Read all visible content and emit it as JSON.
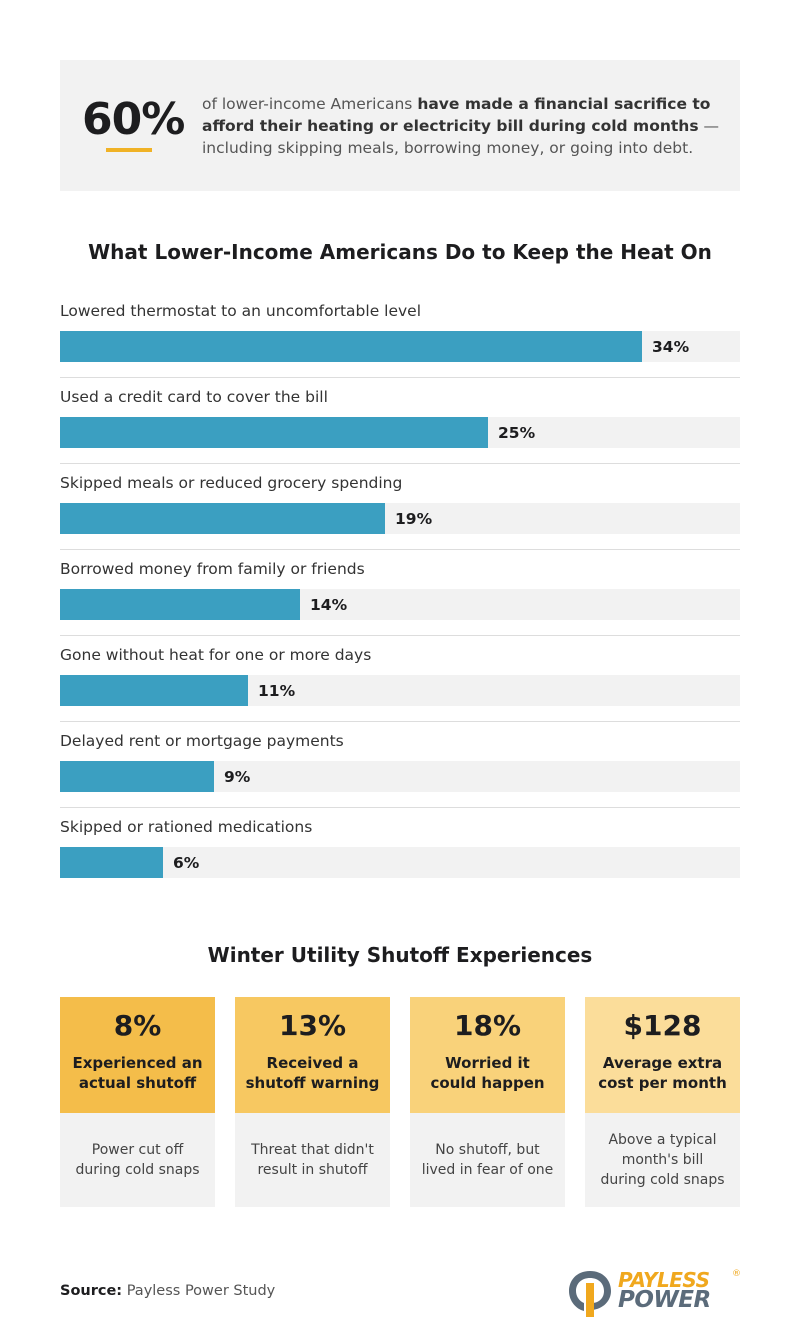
{
  "headline": {
    "stat": "60%",
    "text_lead": "of lower-income Americans ",
    "text_bold": "have made a financial sacrifice to afford their heating or electricity bill during cold months",
    "text_tail": " — including skipping meals, borrowing money, or going into debt."
  },
  "chart_data": {
    "type": "bar",
    "orientation": "horizontal",
    "title": "What Lower-Income Americans Do to Keep the Heat On",
    "categories": [
      "Lowered thermostat to an uncomfortable level",
      "Used a credit card to cover the bill",
      "Skipped meals or reduced grocery spending",
      "Borrowed money from family or friends",
      "Gone without heat for one or more days",
      "Delayed rent or mortgage payments",
      "Skipped or rationed medications"
    ],
    "values": [
      34,
      25,
      19,
      14,
      11,
      9,
      6
    ],
    "value_labels": [
      "34%",
      "25%",
      "19%",
      "14%",
      "11%",
      "9%",
      "6%"
    ],
    "unit": "%",
    "xlim": [
      0,
      39.7
    ],
    "bar_color": "#3b9fc1",
    "track_color": "#f2f2f2"
  },
  "shutoff": {
    "title": "Winter Utility Shutoff Experiences",
    "cards": [
      {
        "value": "8%",
        "label": "Experienced an\nactual shutoff",
        "note": "Power cut off\nduring cold snaps",
        "color": "#f4bd4a"
      },
      {
        "value": "13%",
        "label": "Received a\nshutoff warning",
        "note": "Threat that didn't\nresult in shutoff",
        "color": "#f7c861"
      },
      {
        "value": "18%",
        "label": "Worried it\ncould happen",
        "note": "No shutoff, but\nlived in fear of one",
        "color": "#f9d27a"
      },
      {
        "value": "$128",
        "label": "Average extra\ncost per month",
        "note": "Above a typical\nmonth's bill\nduring cold snaps",
        "color": "#fbdd9a"
      }
    ]
  },
  "source": {
    "label": "Source:",
    "text": " Payless Power Study"
  },
  "logo": {
    "line1": "PAYLESS",
    "line2": "POWER",
    "reg": "®",
    "icon": "payless-power-logo-icon"
  },
  "colors": {
    "accent": "#f0b226",
    "bar": "#3b9fc1",
    "logo_gray": "#5b6b7a"
  }
}
